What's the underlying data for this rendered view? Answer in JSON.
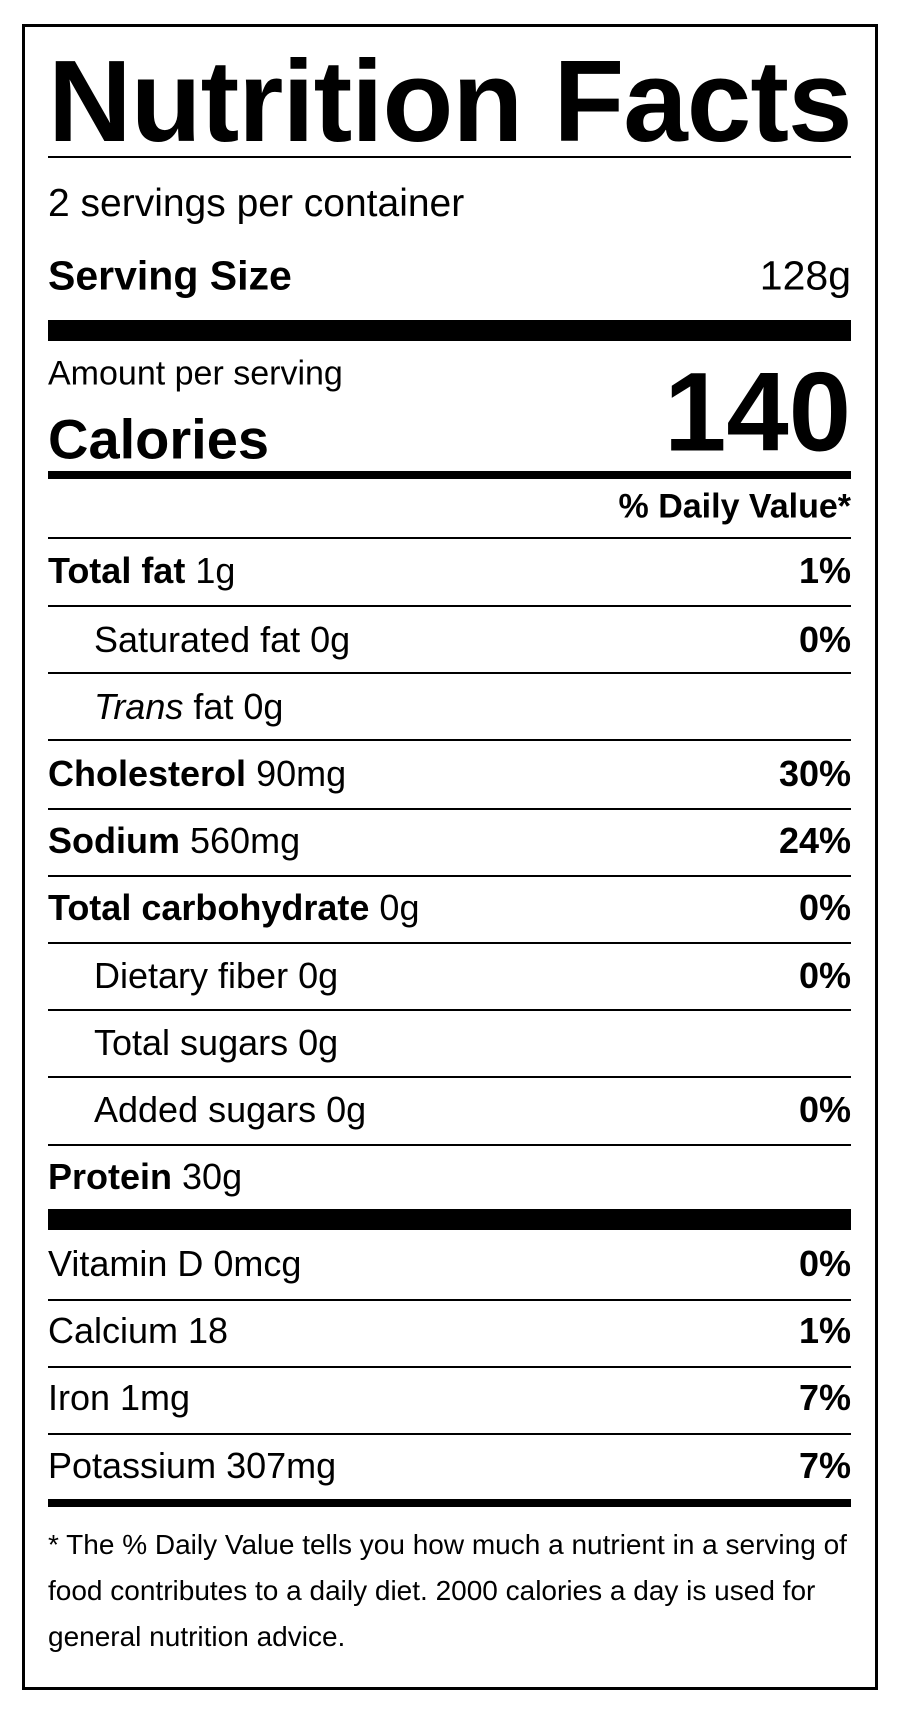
{
  "header": {
    "title": "Nutrition Facts",
    "servings": "2 servings per container",
    "serving_size_label": "Serving Size",
    "serving_size_value": "128g"
  },
  "calories": {
    "amount_per_serving": "Amount per serving",
    "label": "Calories",
    "value": "140",
    "daily_value_header": "% Daily Value*"
  },
  "nutrients": [
    {
      "name": "Total fat",
      "amount": "1g",
      "dv": "1%"
    },
    {
      "name": "Saturated fat 0g",
      "dv": "0%"
    },
    {
      "name": "Trans",
      "amount": "fat 0g"
    },
    {
      "name": "Cholesterol",
      "amount": "90mg",
      "dv": "30%"
    },
    {
      "name": "Sodium",
      "amount": "560mg",
      "dv": "24%"
    },
    {
      "name": "Total carbohydrate",
      "amount": "0g",
      "dv": "0%"
    },
    {
      "name": "Dietary fiber 0g",
      "dv": "0%"
    },
    {
      "name": "Total sugars 0g"
    },
    {
      "name": "Added sugars 0g",
      "dv": "0%"
    },
    {
      "name": "Protein",
      "amount": "30g"
    }
  ],
  "vitamins": [
    {
      "name": "Vitamin D 0mcg",
      "dv": "0%"
    },
    {
      "name": "Calcium 18",
      "dv": "1%"
    },
    {
      "name": "Iron 1mg",
      "dv": "7%"
    },
    {
      "name": "Potassium 307mg",
      "dv": "7%"
    }
  ],
  "footnote": "* The % Daily Value tells you how much a nutrient in a serving of food contributes to a daily diet. 2000 calories a day is used for general nutrition advice."
}
